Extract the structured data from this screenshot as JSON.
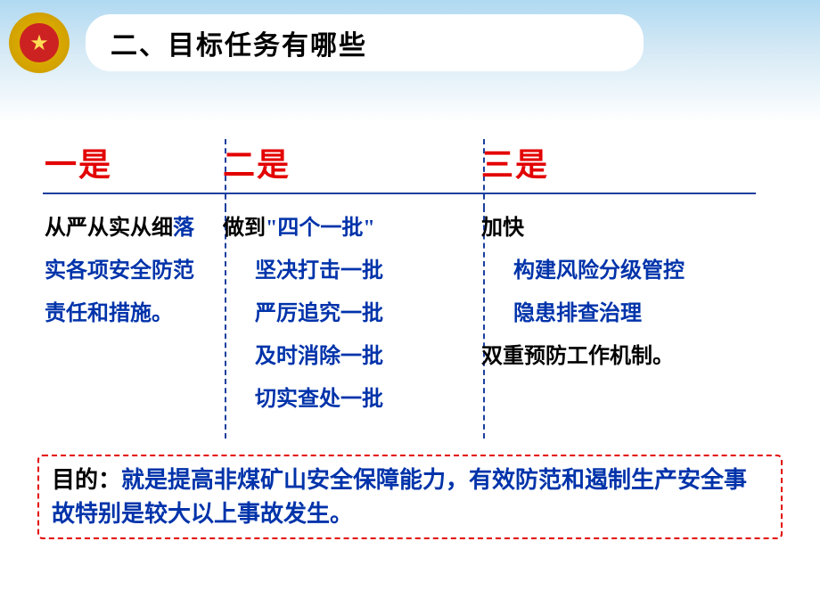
{
  "header": {
    "title": "二、目标任务有哪些",
    "emblem_star": "★"
  },
  "columns": {
    "col1": {
      "heading": "一是",
      "text_black": "从严从实从细",
      "text_blue": "落实各项安全防范责任和措施。"
    },
    "col2": {
      "heading": "二是",
      "intro_black": "做到",
      "intro_blue": "\"四个一批\"",
      "items": [
        "坚决打击一批",
        "严厉追究一批",
        "及时消除一批",
        "切实查处一批"
      ]
    },
    "col3": {
      "heading": "三是",
      "intro_black": "加快",
      "line1_blue": "构建风险分级管控",
      "line2_blue": "隐患排查治理",
      "line3_black": "双重预防工作机制。"
    }
  },
  "purpose": {
    "label": "目的：",
    "text": "就是提高非煤矿山安全保障能力，有效防范和遏制生产安全事故特别是较大以上事故发生。"
  },
  "style": {
    "heading_color": "#e30000",
    "blue_text_color": "#0033aa",
    "divider_color": "#1b3f9e",
    "hr_color": "#1b3f9e",
    "purpose_border_color": "#e30000",
    "background_gradient_top": "#b0d9f2",
    "title_fontsize": 30,
    "col_heading_fontsize": 36,
    "body_fontsize": 24,
    "purpose_fontsize": 26
  }
}
